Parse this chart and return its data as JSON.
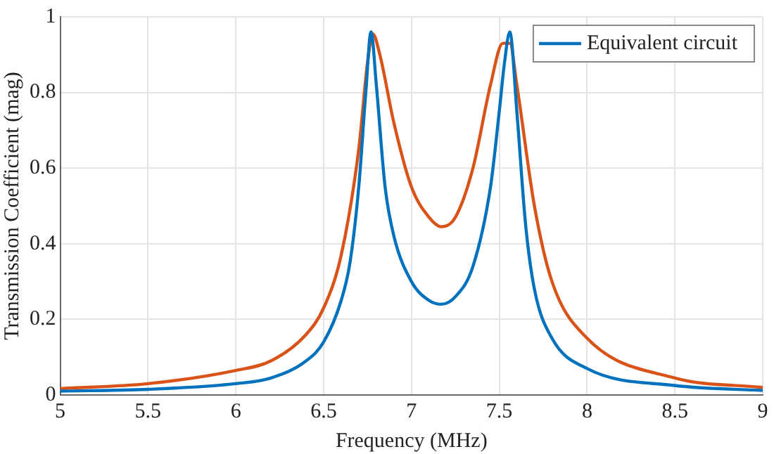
{
  "chart_data": {
    "type": "line",
    "xlabel": "Frequency (MHz)",
    "ylabel": "Transmission Coefficient (mag)",
    "xlim": [
      5,
      9
    ],
    "xticks": [
      5,
      5.5,
      6,
      6.5,
      7,
      7.5,
      8,
      8.5,
      9
    ],
    "ylim": [
      0,
      1
    ],
    "yticks": [
      0,
      0.2,
      0.4,
      0.6,
      0.8,
      1
    ],
    "grid": true,
    "legend": "top right",
    "marker": "none",
    "line_style": "solid",
    "series": [
      {
        "name": "Equivalent circuit",
        "color": "#0072bd",
        "x": [
          5,
          5.5,
          6,
          6.2,
          6.4,
          6.5,
          6.6,
          6.65,
          6.7,
          6.74,
          6.77,
          6.8,
          6.85,
          6.9,
          7,
          7.1,
          7.17,
          7.25,
          7.35,
          7.45,
          7.5,
          7.53,
          7.56,
          7.6,
          7.65,
          7.7,
          7.8,
          8,
          8.5,
          9
        ],
        "values": [
          0.01,
          0.015,
          0.03,
          0.045,
          0.09,
          0.14,
          0.25,
          0.35,
          0.55,
          0.8,
          0.96,
          0.82,
          0.55,
          0.42,
          0.3,
          0.25,
          0.24,
          0.26,
          0.34,
          0.55,
          0.75,
          0.88,
          0.96,
          0.75,
          0.45,
          0.28,
          0.15,
          0.07,
          0.025,
          0.012
        ]
      },
      {
        "color": "#d95319",
        "x": [
          5,
          5.5,
          6,
          6.2,
          6.4,
          6.5,
          6.6,
          6.7,
          6.75,
          6.78,
          6.82,
          6.9,
          7,
          7.1,
          7.17,
          7.25,
          7.35,
          7.45,
          7.52,
          7.56,
          7.6,
          7.7,
          7.8,
          8,
          8.5,
          9
        ],
        "values": [
          0.017,
          0.03,
          0.065,
          0.09,
          0.16,
          0.23,
          0.37,
          0.65,
          0.88,
          0.955,
          0.9,
          0.72,
          0.55,
          0.47,
          0.445,
          0.47,
          0.6,
          0.82,
          0.93,
          0.93,
          0.82,
          0.5,
          0.3,
          0.15,
          0.045,
          0.02
        ]
      }
    ]
  }
}
